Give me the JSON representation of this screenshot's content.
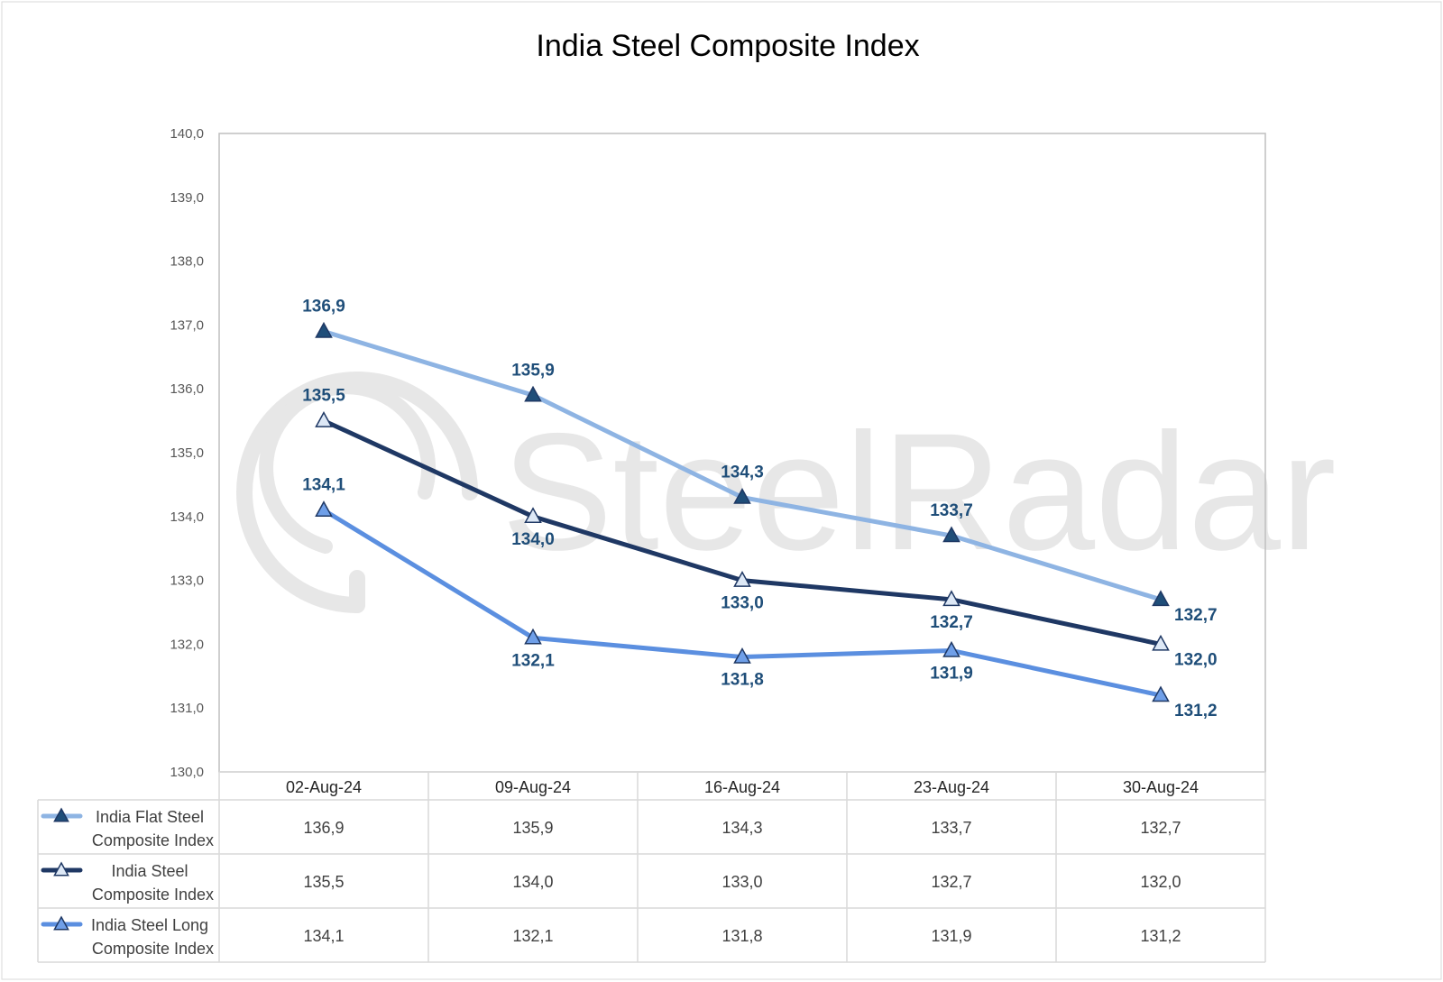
{
  "chart_data": {
    "type": "line",
    "title": "India Steel Composite Index",
    "categories": [
      "02-Aug-24",
      "09-Aug-24",
      "16-Aug-24",
      "23-Aug-24",
      "30-Aug-24"
    ],
    "ylim": [
      130.0,
      140.0
    ],
    "yticks": [
      "130,0",
      "131,0",
      "132,0",
      "133,0",
      "134,0",
      "135,0",
      "136,0",
      "137,0",
      "138,0",
      "139,0",
      "140,0"
    ],
    "grid": false,
    "legend_placement": "data-table",
    "series": [
      {
        "name": "India Flat Steel Composite Index",
        "legend_lines": [
          "India Flat Steel",
          "Composite Index"
        ],
        "values": [
          136.9,
          135.9,
          134.3,
          133.7,
          132.7
        ],
        "labels": [
          "136,9",
          "135,9",
          "134,3",
          "133,7",
          "132,7"
        ],
        "line_color": "#8EB4E3",
        "marker_fill": "#1F4E79",
        "label_position": "above"
      },
      {
        "name": "India Steel Composite Index",
        "legend_lines": [
          "India Steel",
          "Composite Index"
        ],
        "values": [
          135.5,
          134.0,
          133.0,
          132.7,
          132.0
        ],
        "labels": [
          "135,5",
          "134,0",
          "133,0",
          "132,7",
          "132,0"
        ],
        "line_color": "#1F3864",
        "marker_fill": "#DDE8F6",
        "label_position": "below"
      },
      {
        "name": "India Steel Long Composite Index",
        "legend_lines": [
          "India Steel Long",
          "Composite Index"
        ],
        "values": [
          134.1,
          132.1,
          131.8,
          131.9,
          131.2
        ],
        "labels": [
          "134,1",
          "132,1",
          "131,8",
          "131,9",
          "131,2"
        ],
        "line_color": "#5B8FE0",
        "marker_fill": "#6F9FE8",
        "label_position": "below"
      }
    ],
    "watermark": "SteelRadar",
    "colors": {
      "data_label": "#1F4E79",
      "axis_line": "#BFBFBF",
      "table_border": "#D9D9D9"
    }
  }
}
